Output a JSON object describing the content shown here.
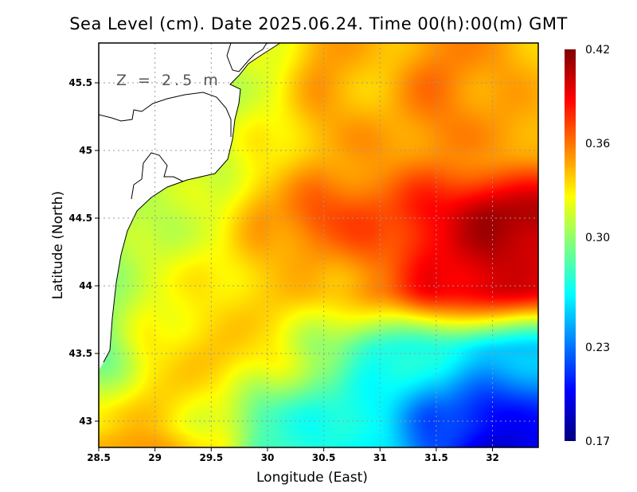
{
  "chart_data": {
    "type": "heatmap",
    "title": "Sea Level (cm). Date 2025.06.24. Time 00(h):00(m) GMT",
    "annotation": "Z = 2.5 m",
    "xlabel": "Longitude (East)",
    "ylabel": "Latitude (North)",
    "xlim": [
      28.5,
      32.4
    ],
    "ylim": [
      42.8,
      45.8
    ],
    "x_ticks": [
      "28.5",
      "29",
      "29.5",
      "30",
      "30.5",
      "31",
      "31.5",
      "32"
    ],
    "y_ticks": [
      "43",
      "43.5",
      "44",
      "44.5",
      "45",
      "45.5"
    ],
    "grid": true,
    "colormap": "jet",
    "colorbar": {
      "range": [
        0.17,
        0.42
      ],
      "tick_labels": [
        "0.42",
        "0.36",
        "0.30",
        "0.23",
        "0.17"
      ],
      "placement": "right"
    },
    "grid_lon": [
      28.5,
      29,
      29.5,
      30,
      30.5,
      31,
      31.5,
      32,
      32.5
    ],
    "grid_lat": [
      45.8,
      45.5,
      45.0,
      44.5,
      44.0,
      43.5,
      43.0,
      42.8
    ],
    "values": [
      [
        0.31,
        0.31,
        0.31,
        0.32,
        0.35,
        0.34,
        0.355,
        0.35,
        0.34
      ],
      [
        0.31,
        0.31,
        0.31,
        0.32,
        0.35,
        0.34,
        0.36,
        0.35,
        0.34
      ],
      [
        0.31,
        0.31,
        0.31,
        0.33,
        0.345,
        0.35,
        0.355,
        0.35,
        0.35
      ],
      [
        0.3,
        0.31,
        0.32,
        0.35,
        0.37,
        0.37,
        0.39,
        0.41,
        0.41
      ],
      [
        0.3,
        0.32,
        0.33,
        0.34,
        0.34,
        0.36,
        0.39,
        0.4,
        0.39
      ],
      [
        0.29,
        0.33,
        0.34,
        0.33,
        0.3,
        0.27,
        0.27,
        0.25,
        0.25
      ],
      [
        0.33,
        0.34,
        0.32,
        0.28,
        0.27,
        0.26,
        0.22,
        0.2,
        0.21
      ],
      [
        0.345,
        0.35,
        0.33,
        0.28,
        0.27,
        0.26,
        0.22,
        0.19,
        0.2
      ]
    ]
  }
}
